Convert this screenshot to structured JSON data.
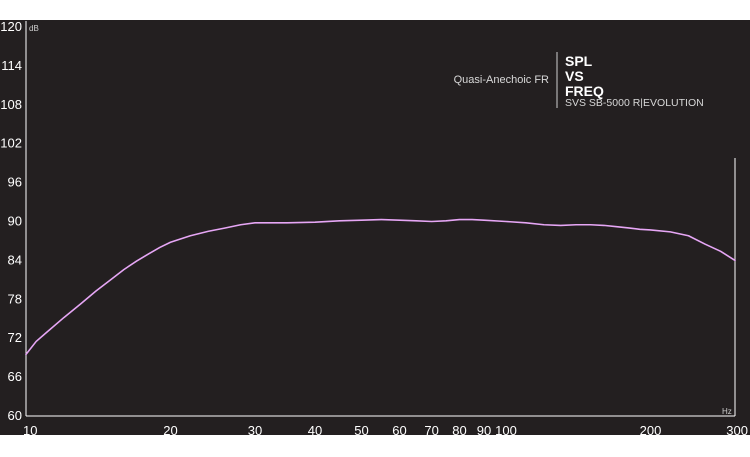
{
  "chart_data": {
    "type": "line",
    "title_lines": [
      "SPL",
      "VS",
      "FREQ"
    ],
    "subtitle": "Quasi-Anechoic FR",
    "product": "SVS SB-5000 R|EVOLUTION",
    "y_unit": "dB",
    "x_unit": "Hz",
    "x_scale": "log",
    "xlim": [
      10,
      300
    ],
    "ylim": [
      60,
      120
    ],
    "y_ticks": [
      60,
      66,
      72,
      78,
      84,
      90,
      96,
      102,
      108,
      114,
      120
    ],
    "x_ticks": [
      10,
      20,
      30,
      40,
      50,
      60,
      70,
      80,
      90,
      100,
      200,
      300
    ],
    "grid": false,
    "series": [
      {
        "color": "#e6a6f5",
        "x": [
          10,
          10.5,
          11,
          12,
          13,
          14,
          15,
          16,
          17,
          18,
          19,
          20,
          22,
          24,
          26,
          28,
          30,
          35,
          40,
          45,
          50,
          55,
          60,
          65,
          70,
          75,
          80,
          85,
          90,
          100,
          110,
          120,
          130,
          140,
          150,
          160,
          170,
          180,
          190,
          200,
          220,
          240,
          260,
          280,
          300
        ],
        "y": [
          69.5,
          71.5,
          72.8,
          75.2,
          77.3,
          79.3,
          81.0,
          82.6,
          83.9,
          85.0,
          86.0,
          86.8,
          87.8,
          88.5,
          89.0,
          89.5,
          89.8,
          89.8,
          89.9,
          90.1,
          90.2,
          90.3,
          90.2,
          90.1,
          90.0,
          90.1,
          90.3,
          90.3,
          90.2,
          90.0,
          89.8,
          89.5,
          89.4,
          89.5,
          89.5,
          89.4,
          89.2,
          89.0,
          88.8,
          88.7,
          88.4,
          87.8,
          86.5,
          85.4,
          84.0
        ]
      }
    ]
  },
  "colors": {
    "background": "#231f20",
    "axis": "#ffffff",
    "line": "#e6a6f5",
    "frame": "#ffffff"
  }
}
